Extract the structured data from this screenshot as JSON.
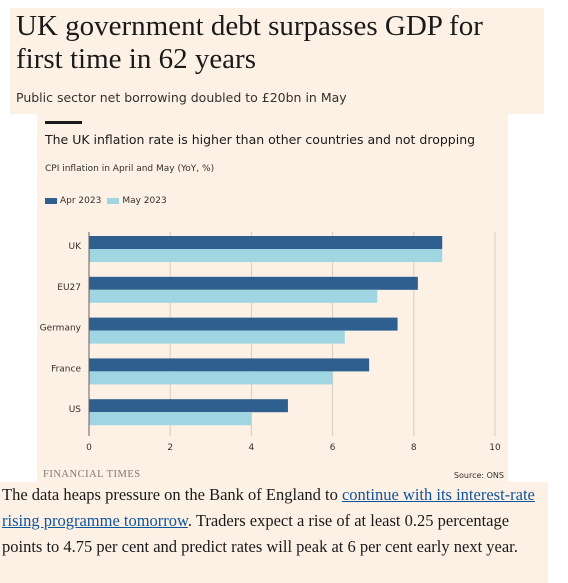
{
  "article": {
    "headline": "UK government debt surpasses GDP for first time in 62 years",
    "standfirst": "Public sector net borrowing doubled to £20bn in May",
    "paragraph_before_link": "The data heaps pressure on the Bank of England to ",
    "paragraph_link": "continue with its interest-rate rising programme tomorrow",
    "paragraph_after_link": ". Traders expect a rise of at least 0.25 percentage points to 4.75 per cent and predict rates will peak at 6 per cent early next year."
  },
  "chart_footer": {
    "publisher": "FINANCIAL TIMES",
    "source": "Source: ONS"
  },
  "colors": {
    "apr": "#2f5f8f",
    "may": "#a0d6e2",
    "card_bg": "#fdf1e6",
    "grid": "#d9cbbf",
    "link": "#0f5499"
  },
  "chart_data": {
    "type": "bar",
    "orientation": "horizontal",
    "title": "The UK inflation rate is higher than other countries and not dropping",
    "subtitle": "CPI inflation in April and May (YoY, %)",
    "categories": [
      "UK",
      "EU27",
      "Germany",
      "France",
      "US"
    ],
    "series": [
      {
        "name": "Apr 2023",
        "values": [
          8.7,
          8.1,
          7.6,
          6.9,
          4.9
        ]
      },
      {
        "name": "May 2023",
        "values": [
          8.7,
          7.1,
          6.3,
          6.0,
          4.0
        ]
      }
    ],
    "x_ticks": [
      "0",
      "2",
      "4",
      "6",
      "8",
      "10"
    ],
    "xlim": [
      0,
      10
    ],
    "grid": "vertical",
    "legend": "top-left"
  }
}
